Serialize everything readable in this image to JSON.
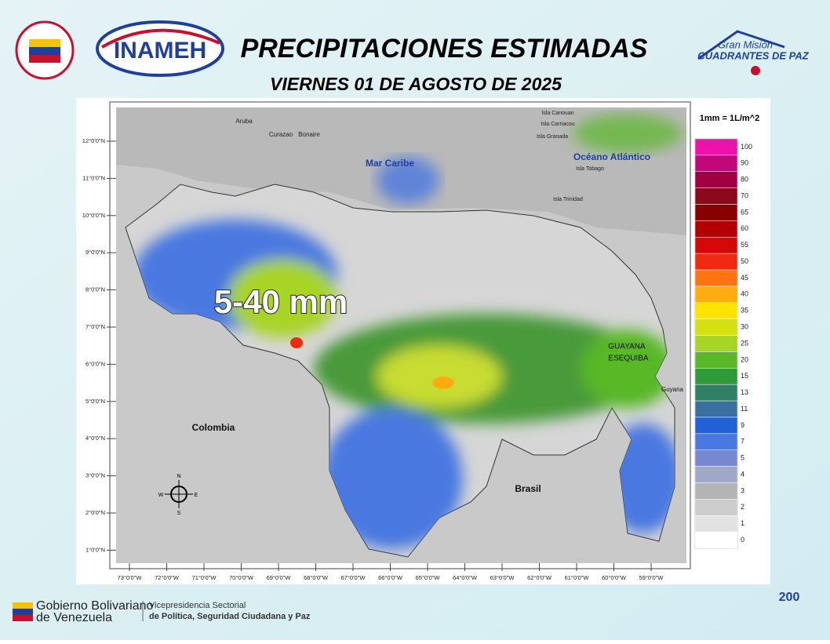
{
  "header": {
    "title": "PRECIPITACIONES ESTIMADAS",
    "subtitle": "VIERNES 01 DE AGOSTO DE 2025",
    "logos": {
      "inameh": "INAMEH",
      "mission_top": "Gran Misión",
      "mission_bottom": "CUADRANTES DE PAZ"
    }
  },
  "map": {
    "highlight": "5-40 mm",
    "labels": [
      "Mar Caribe",
      "Océano Atlántico",
      "Colombia",
      "Brasil",
      "GUAYANA",
      "ESEQUIBA",
      "Guyana",
      "Aruba",
      "Curazao",
      "Bonaire",
      "Isla Canouan",
      "Isla Carriacou",
      "Isla Granada",
      "Isla Tobago",
      "Isla Trinidad"
    ],
    "lat_labels": [
      "12°0'0\"N",
      "11°0'0\"N",
      "10°0'0\"N",
      "9°0'0\"N",
      "8°0'0\"N",
      "7°0'0\"N",
      "6°0'0\"N",
      "5°0'0\"N",
      "4°0'0\"N",
      "3°0'0\"N",
      "2°0'0\"N",
      "1°0'0\"N"
    ],
    "lon_labels": [
      "73°0'0\"W",
      "72°0'0\"W",
      "71°0'0\"W",
      "70°0'0\"W",
      "69°0'0\"W",
      "68°0'0\"W",
      "67°0'0\"W",
      "66°0'0\"W",
      "65°0'0\"W",
      "64°0'0\"W",
      "63°0'0\"W",
      "62°0'0\"W",
      "61°0'0\"W",
      "60°0'0\"W",
      "59°0'0\"W"
    ],
    "compass": [
      "N",
      "E",
      "S",
      "W"
    ]
  },
  "legend": {
    "unit": "1mm = 1L/m^2",
    "entries": [
      {
        "value": 100,
        "color": "#ee11aa"
      },
      {
        "value": 90,
        "color": "#c0087a"
      },
      {
        "value": 80,
        "color": "#a00040"
      },
      {
        "value": 70,
        "color": "#8b0a1a"
      },
      {
        "value": 65,
        "color": "#880000"
      },
      {
        "value": 60,
        "color": "#b40000"
      },
      {
        "value": 55,
        "color": "#d40808"
      },
      {
        "value": 50,
        "color": "#f02a10"
      },
      {
        "value": 45,
        "color": "#ff7410"
      },
      {
        "value": 40,
        "color": "#ffac10"
      },
      {
        "value": 35,
        "color": "#ffe400"
      },
      {
        "value": 30,
        "color": "#d4e010"
      },
      {
        "value": 25,
        "color": "#a8d428"
      },
      {
        "value": 20,
        "color": "#58b828"
      },
      {
        "value": 15,
        "color": "#2e9a38"
      },
      {
        "value": 13,
        "color": "#2f8064"
      },
      {
        "value": 11,
        "color": "#3a70a0"
      },
      {
        "value": 9,
        "color": "#2260d8"
      },
      {
        "value": 7,
        "color": "#4878e0"
      },
      {
        "value": 5,
        "color": "#7888d0"
      },
      {
        "value": 4,
        "color": "#a0a8c8"
      },
      {
        "value": 3,
        "color": "#b4b4b4"
      },
      {
        "value": 2,
        "color": "#cccccc"
      },
      {
        "value": 1,
        "color": "#e2e2e2"
      },
      {
        "value": 0,
        "color": "#ffffff"
      }
    ]
  },
  "footer": {
    "gov_top": "Gobierno Bolivariano",
    "gov_bottom": "de Venezuela",
    "vp_top": "Vicepresidencia Sectorial",
    "vp_bottom": "de Política, Seguridad Ciudadana y Paz",
    "badge": "200"
  }
}
